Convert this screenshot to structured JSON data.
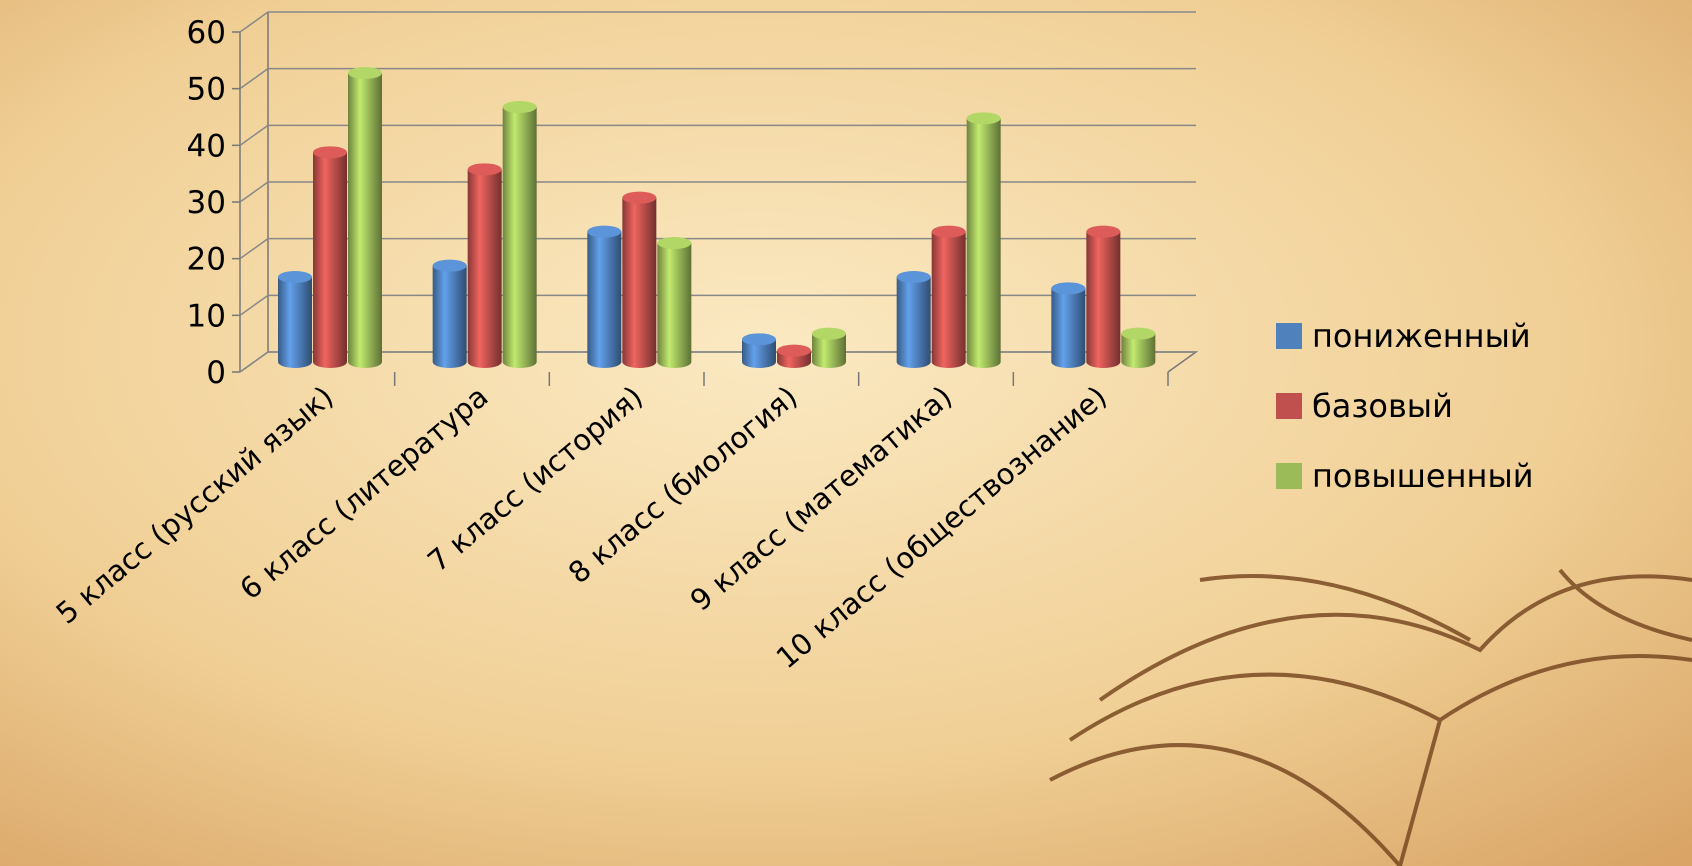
{
  "chart_data": {
    "type": "bar3d",
    "categories": [
      "5 класс (русский язык)",
      "6 класс (литература",
      "7 класс (история)",
      "8 класс (биология)",
      "9 класс (математика)",
      "10 класс (обществознание)"
    ],
    "series": [
      {
        "name": "пониженный",
        "color": "#4f81bd",
        "values": [
          15,
          17,
          23,
          4,
          15,
          13
        ]
      },
      {
        "name": "базовый",
        "color": "#c0504d",
        "values": [
          37,
          34,
          29,
          2,
          23,
          23
        ]
      },
      {
        "name": "повышенный",
        "color": "#9bbb59",
        "values": [
          51,
          45,
          21,
          5,
          43,
          5
        ]
      }
    ],
    "ylim": [
      0,
      60
    ],
    "yticks": [
      0,
      10,
      20,
      30,
      40,
      50,
      60
    ],
    "grid": true,
    "legend": "right"
  }
}
